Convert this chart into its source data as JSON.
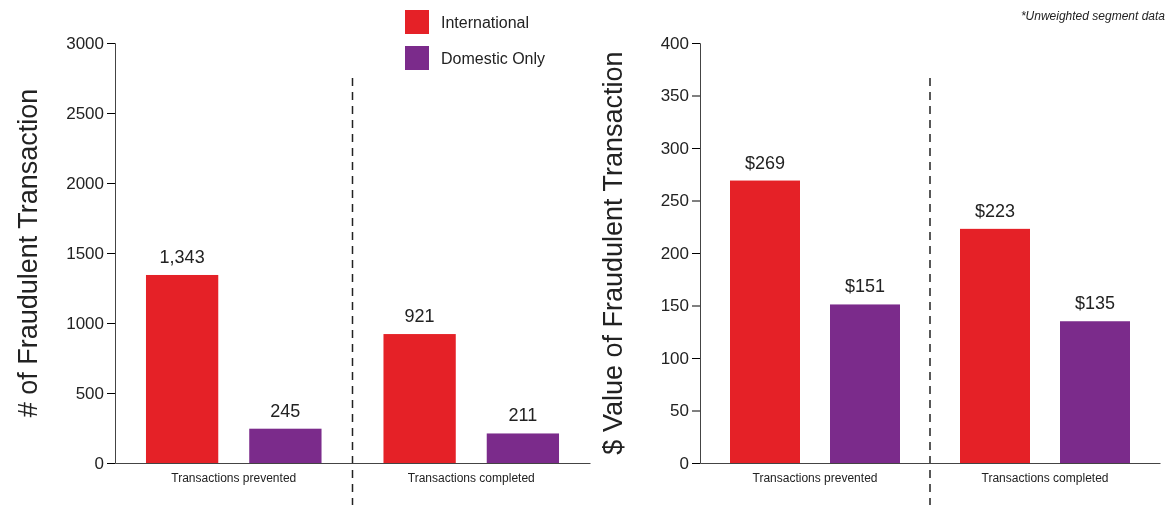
{
  "chart_data": [
    {
      "type": "bar",
      "ylabel": "# of Fraudulent Transaction",
      "categories": [
        "Transactions prevented",
        "Transactions completed"
      ],
      "series": [
        {
          "name": "International",
          "color": "#e52127",
          "values": [
            1343,
            921
          ],
          "value_labels": [
            "1,343",
            "921"
          ]
        },
        {
          "name": "Domestic Only",
          "color": "#7b2b8b",
          "values": [
            245,
            211
          ],
          "value_labels": [
            "245",
            "211"
          ]
        }
      ],
      "ylim": [
        0,
        3000
      ],
      "yticks": [
        0,
        500,
        1000,
        1500,
        2000,
        2500,
        3000
      ],
      "grid": false,
      "legend": "top right"
    },
    {
      "type": "bar",
      "ylabel": "$ Value of Fraudulent Transaction",
      "categories": [
        "Transactions prevented",
        "Transactions completed"
      ],
      "series": [
        {
          "color": "#e52127",
          "values": [
            269,
            223
          ],
          "value_labels": [
            "$269",
            "$223"
          ]
        },
        {
          "color": "#7b2b8b",
          "values": [
            151,
            135
          ],
          "value_labels": [
            "$151",
            "$135"
          ]
        }
      ],
      "ylim": [
        0,
        400
      ],
      "yticks": [
        0,
        50,
        100,
        150,
        200,
        250,
        300,
        350,
        400
      ],
      "grid": false,
      "legend": false,
      "annotations": [
        "*Unweighted segment data"
      ]
    }
  ]
}
